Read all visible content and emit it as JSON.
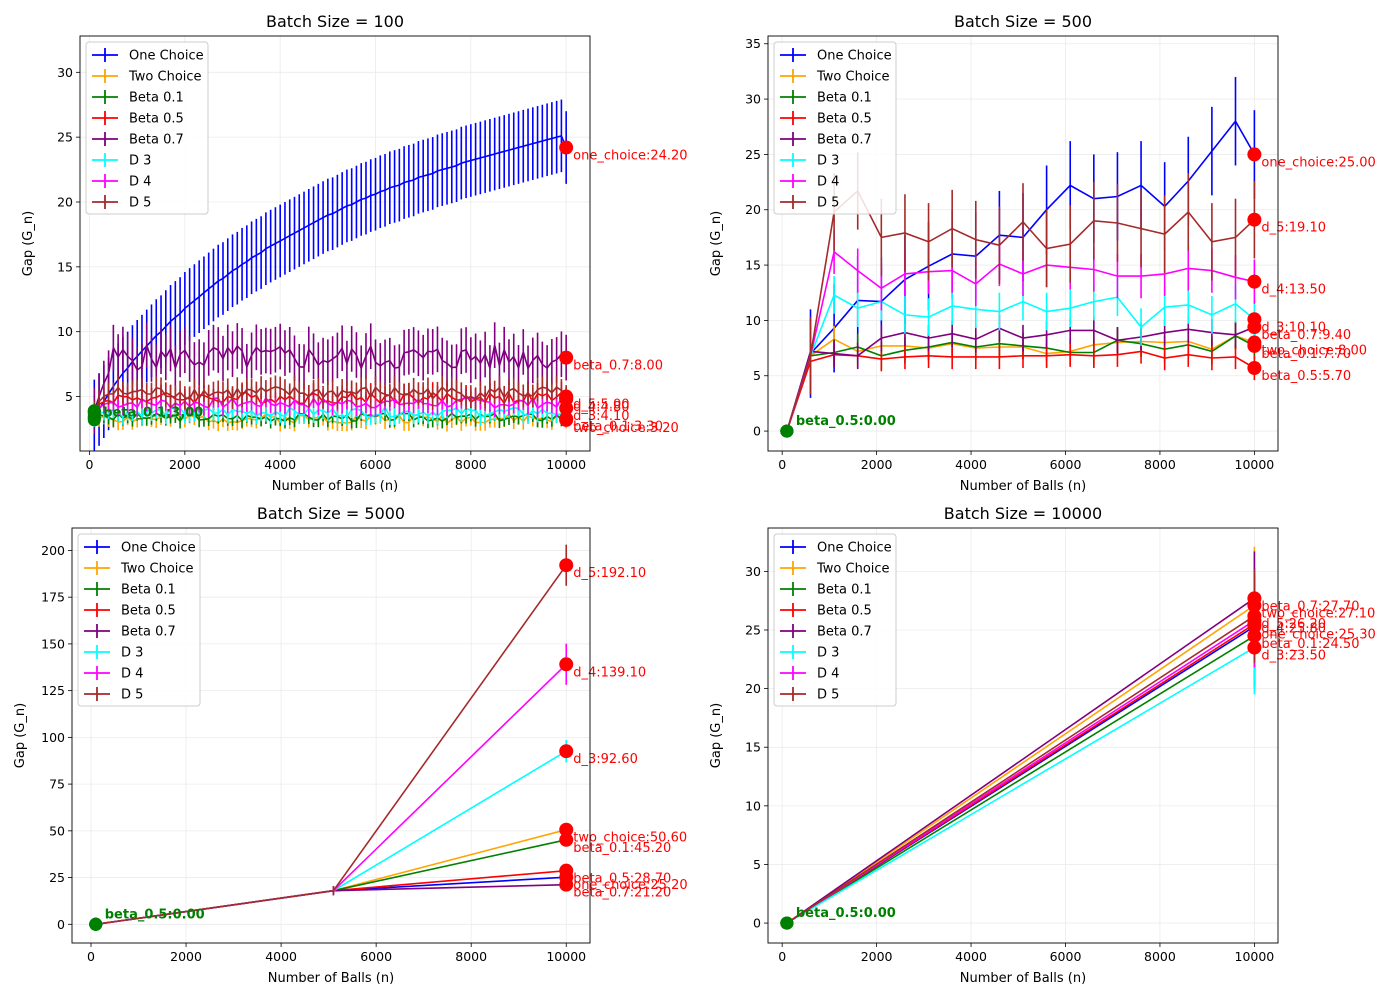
{
  "legend_location": "upper-left",
  "annotation_color": "#ff0000",
  "first_point_color": "#008000",
  "chart_data": [
    {
      "type": "line",
      "title": "Batch Size = 100",
      "xlabel": "Number of Balls (n)",
      "ylabel": "Gap (G_n)",
      "xlim": [
        -200,
        10500
      ],
      "ylim": [
        0.8,
        32.8
      ],
      "xticks": [
        0,
        2000,
        4000,
        6000,
        8000,
        10000
      ],
      "yticks": [
        5,
        10,
        15,
        20,
        25,
        30
      ],
      "grid": true,
      "legend_position": "upper-left",
      "annotations_end": [
        {
          "label": "one_choice:24.20",
          "y": 24.2
        },
        {
          "label": "beta_0.7:8.00",
          "y": 8.0
        },
        {
          "label": "d_5:5.00",
          "y": 5.0
        },
        {
          "label": "d_4:4.80",
          "y": 4.8
        },
        {
          "label": "d_3:4.10",
          "y": 4.1
        },
        {
          "label": "beta_0.1:3.30",
          "y": 3.3
        },
        {
          "label": "two_choice:3.20",
          "y": 3.2
        }
      ],
      "annotations_start": [
        {
          "label": "beta_0.1:3.00",
          "y": 3.0
        }
      ],
      "series": [
        {
          "name": "One Choice",
          "color": "#0000ff",
          "start": 100,
          "step": 100,
          "y": [
            3.5,
            4.0,
            4.6,
            5.2,
            5.8,
            6.3,
            6.8,
            7.2,
            7.7,
            8.1,
            8.5,
            8.9,
            9.3,
            9.7,
            10.0,
            10.4,
            10.8,
            11.1,
            11.4,
            11.8,
            12.1,
            12.4,
            12.7,
            13.0,
            13.3,
            13.6,
            13.9,
            14.1,
            14.4,
            14.7,
            14.9,
            15.2,
            15.4,
            15.7,
            15.9,
            16.1,
            16.4,
            16.6,
            16.8,
            17.0,
            17.2,
            17.4,
            17.6,
            17.8,
            18.0,
            18.2,
            18.4,
            18.6,
            18.8,
            19.0,
            19.1,
            19.3,
            19.5,
            19.7,
            19.8,
            20.0,
            20.2,
            20.3,
            20.5,
            20.6,
            20.8,
            20.9,
            21.1,
            21.2,
            21.3,
            21.5,
            21.6,
            21.7,
            21.9,
            22.0,
            22.1,
            22.2,
            22.4,
            22.5,
            22.6,
            22.7,
            22.8,
            23.0,
            23.1,
            23.2,
            23.3,
            23.4,
            23.5,
            23.6,
            23.7,
            23.8,
            23.9,
            24.0,
            24.1,
            24.2,
            24.3,
            24.4,
            24.5,
            24.6,
            24.7,
            24.8,
            24.9,
            25.0,
            25.1,
            24.2
          ],
          "err": 3.5,
          "marker_end": 24.2
        },
        {
          "name": "Two Choice",
          "color": "#ffa500",
          "start": 100,
          "step": 100,
          "y": [
            3.4,
            3.3,
            3.5,
            3.3
          ],
          "err": 0.8,
          "marker_end": 3.2,
          "series_level": 3.3
        },
        {
          "name": "Beta 0.1",
          "color": "#008000",
          "start": 100,
          "step": 100,
          "y": [
            3.2,
            3.6,
            3.5,
            3.4
          ],
          "err": 0.7,
          "marker_end": 3.3,
          "series_level": 3.4
        },
        {
          "name": "Beta 0.5",
          "color": "#ff0000",
          "start": 100,
          "step": 100,
          "y": [
            3.9,
            4.4,
            4.6,
            4.7
          ],
          "err": 1.0,
          "marker_end": 4.9,
          "series_level": 4.9
        },
        {
          "name": "Beta 0.7",
          "color": "#800080",
          "start": 100,
          "step": 100,
          "y": [
            3.9,
            5.0,
            6.0,
            6.8
          ],
          "err": 2.2,
          "marker_end": 8.0,
          "series_level": 8.0
        },
        {
          "name": "D 3",
          "color": "#00ffff",
          "start": 100,
          "step": 100,
          "y": [
            3.3,
            3.7,
            3.8,
            3.9
          ],
          "err": 0.8,
          "marker_end": 4.1,
          "series_level": 3.8
        },
        {
          "name": "D 4",
          "color": "#ff00ff",
          "start": 100,
          "step": 100,
          "y": [
            3.7,
            4.1,
            4.4,
            4.5
          ],
          "err": 0.9,
          "marker_end": 4.8,
          "series_level": 4.5
        },
        {
          "name": "D 5",
          "color": "#a52a2a",
          "start": 100,
          "step": 100,
          "y": [
            3.8,
            4.6,
            5.0,
            5.2
          ],
          "err": 1.1,
          "marker_end": 5.0,
          "series_level": 5.3
        }
      ]
    },
    {
      "type": "line",
      "title": "Batch Size = 500",
      "xlabel": "Number of Balls (n)",
      "ylabel": "Gap (G_n)",
      "xlim": [
        -300,
        10500
      ],
      "ylim": [
        -1.8,
        35.7
      ],
      "xticks": [
        0,
        2000,
        4000,
        6000,
        8000,
        10000
      ],
      "yticks": [
        0,
        5,
        10,
        15,
        20,
        25,
        30,
        35
      ],
      "grid": true,
      "legend_position": "upper-left",
      "annotations_end": [
        {
          "label": "one_choice:25.00",
          "y": 25.0
        },
        {
          "label": "d_5:19.10",
          "y": 19.1
        },
        {
          "label": "d_4:13.50",
          "y": 13.5
        },
        {
          "label": "d_3:10.10",
          "y": 10.1
        },
        {
          "label": "beta_0.7:9.40",
          "y": 9.4
        },
        {
          "label": "two_choice:8.00",
          "y": 8.0
        },
        {
          "label": "beta_0.1:7.70",
          "y": 7.7
        },
        {
          "label": "beta_0.5:5.70",
          "y": 5.7
        }
      ],
      "annotations_start": [
        {
          "label": "beta_0.5:0.00",
          "y": 0.0
        }
      ],
      "x": [
        100,
        600,
        1100,
        1600,
        2100,
        2600,
        3100,
        3600,
        4100,
        4600,
        5100,
        5600,
        6100,
        6600,
        7100,
        7600,
        8100,
        8600,
        9100,
        9600,
        10000
      ],
      "series": [
        {
          "name": "One Choice",
          "color": "#0000ff",
          "y": [
            0,
            7.0,
            9.3,
            11.8,
            11.7,
            13.7,
            14.9,
            16.0,
            15.8,
            17.7,
            17.5,
            20.0,
            22.2,
            21.0,
            21.2,
            22.2,
            20.3,
            22.6,
            25.3,
            28.0,
            25.0
          ],
          "err": 4.0
        },
        {
          "name": "Two Choice",
          "color": "#ffa500",
          "y": [
            0,
            6.8,
            8.3,
            7.2,
            7.7,
            7.7,
            7.5,
            7.9,
            7.5,
            7.6,
            7.6,
            7.0,
            7.2,
            7.8,
            8.0,
            8.1,
            8.0,
            8.1,
            7.4,
            8.6,
            8.0
          ],
          "err": 1.2
        },
        {
          "name": "Beta 0.1",
          "color": "#008000",
          "y": [
            0,
            6.8,
            7.1,
            7.6,
            6.8,
            7.3,
            7.6,
            8.0,
            7.6,
            7.9,
            7.7,
            7.5,
            7.1,
            7.1,
            8.2,
            7.9,
            7.4,
            7.8,
            7.2,
            8.6,
            7.7
          ],
          "err": 1.2
        },
        {
          "name": "Beta 0.5",
          "color": "#ff0000",
          "y": [
            0,
            6.3,
            6.9,
            6.8,
            6.5,
            6.7,
            6.8,
            6.7,
            6.7,
            6.7,
            6.8,
            6.8,
            6.9,
            6.8,
            6.9,
            7.2,
            6.6,
            6.9,
            6.6,
            6.7,
            5.7
          ],
          "err": 1.1
        },
        {
          "name": "Beta 0.7",
          "color": "#800080",
          "y": [
            0,
            7.2,
            7.0,
            6.8,
            8.4,
            8.9,
            8.4,
            8.8,
            8.3,
            9.3,
            8.4,
            8.7,
            9.1,
            9.1,
            8.2,
            8.5,
            8.9,
            9.2,
            8.9,
            8.7,
            9.4
          ],
          "err": 1.2
        },
        {
          "name": "D 3",
          "color": "#00ffff",
          "y": [
            0,
            6.8,
            12.3,
            11.1,
            11.7,
            10.5,
            10.3,
            11.3,
            11.0,
            10.8,
            11.7,
            10.8,
            11.1,
            11.7,
            12.1,
            9.4,
            11.2,
            11.4,
            10.5,
            11.5,
            10.1
          ],
          "err": 1.7
        },
        {
          "name": "D 4",
          "color": "#ff00ff",
          "y": [
            0,
            6.8,
            16.2,
            14.5,
            12.9,
            14.2,
            14.4,
            14.5,
            13.3,
            15.1,
            14.2,
            15.0,
            14.8,
            14.6,
            14.0,
            14.0,
            14.2,
            14.7,
            14.5,
            13.9,
            13.5
          ],
          "err": 2.0
        },
        {
          "name": "D 5",
          "color": "#a52a2a",
          "y": [
            0,
            6.8,
            19.8,
            21.7,
            17.5,
            17.9,
            17.1,
            18.3,
            17.3,
            16.8,
            18.9,
            16.5,
            16.9,
            19.0,
            18.8,
            18.3,
            17.8,
            19.8,
            17.1,
            17.5,
            19.1
          ],
          "err": 3.5
        }
      ]
    },
    {
      "type": "line",
      "title": "Batch Size = 5000",
      "xlabel": "Number of Balls (n)",
      "ylabel": "Gap (G_n)",
      "xlim": [
        -400,
        10500
      ],
      "ylim": [
        -10,
        212
      ],
      "xticks": [
        0,
        2000,
        4000,
        6000,
        8000,
        10000
      ],
      "yticks": [
        0,
        25,
        50,
        75,
        100,
        125,
        150,
        175,
        200
      ],
      "grid": true,
      "legend_position": "upper-left",
      "annotations_end": [
        {
          "label": "d_5:192.10",
          "y": 192.1
        },
        {
          "label": "d_4:139.10",
          "y": 139.1
        },
        {
          "label": "d_3:92.60",
          "y": 92.6
        },
        {
          "label": "two_choice:50.60",
          "y": 50.6
        },
        {
          "label": "beta_0.1:45.20",
          "y": 45.2
        },
        {
          "label": "beta_0.5:28.70",
          "y": 28.7
        },
        {
          "label": "one_choice:25.20",
          "y": 25.2
        },
        {
          "label": "beta_0.7:21.20",
          "y": 21.2
        }
      ],
      "annotations_start": [
        {
          "label": "beta_0.5:0.00",
          "y": 0.0
        }
      ],
      "x": [
        100,
        5100,
        10000
      ],
      "series": [
        {
          "name": "One Choice",
          "color": "#0000ff",
          "y": [
            0,
            18.0,
            25.2
          ],
          "err": [
            0,
            1.8,
            2.0
          ]
        },
        {
          "name": "Two Choice",
          "color": "#ffa500",
          "y": [
            0,
            18.0,
            50.6
          ],
          "err": [
            0,
            1.8,
            2.5
          ]
        },
        {
          "name": "Beta 0.1",
          "color": "#008000",
          "y": [
            0,
            18.0,
            45.2
          ],
          "err": [
            0,
            1.8,
            2.0
          ]
        },
        {
          "name": "Beta 0.5",
          "color": "#ff0000",
          "y": [
            0,
            18.0,
            28.7
          ],
          "err": [
            0,
            1.8,
            1.5
          ]
        },
        {
          "name": "Beta 0.7",
          "color": "#800080",
          "y": [
            0,
            18.0,
            21.2
          ],
          "err": [
            0,
            1.8,
            1.5
          ]
        },
        {
          "name": "D 3",
          "color": "#00ffff",
          "y": [
            0,
            18.0,
            92.6
          ],
          "err": [
            0,
            2.5,
            6.0
          ]
        },
        {
          "name": "D 4",
          "color": "#ff00ff",
          "y": [
            0,
            18.0,
            139.1
          ],
          "err": [
            0,
            2.5,
            11.0
          ]
        },
        {
          "name": "D 5",
          "color": "#a52a2a",
          "y": [
            0,
            18.0,
            192.1
          ],
          "err": [
            0,
            2.5,
            11.0
          ]
        }
      ]
    },
    {
      "type": "line",
      "title": "Batch Size = 10000",
      "xlabel": "Number of Balls (n)",
      "ylabel": "Gap (G_n)",
      "xlim": [
        -300,
        10500
      ],
      "ylim": [
        -1.7,
        33.7
      ],
      "xticks": [
        0,
        2000,
        4000,
        6000,
        8000,
        10000
      ],
      "yticks": [
        0,
        5,
        10,
        15,
        20,
        25,
        30
      ],
      "grid": true,
      "legend_position": "upper-left",
      "annotations_end": [
        {
          "label": "beta_0.7:27.70",
          "y": 27.7
        },
        {
          "label": "two_choice:27.10",
          "y": 27.1
        },
        {
          "label": "d_5:26.20",
          "y": 26.2
        },
        {
          "label": "d_4:25.80",
          "y": 25.8
        },
        {
          "label": "one_choice:25.30",
          "y": 25.3
        },
        {
          "label": "beta_0.1:24.50",
          "y": 24.5
        },
        {
          "label": "d_3:23.50",
          "y": 23.5
        }
      ],
      "annotations_start": [
        {
          "label": "beta_0.5:0.00",
          "y": 0.0
        }
      ],
      "x": [
        100,
        10000
      ],
      "series": [
        {
          "name": "One Choice",
          "color": "#0000ff",
          "y": [
            0,
            25.3
          ],
          "err": [
            0,
            5.0
          ]
        },
        {
          "name": "Two Choice",
          "color": "#ffa500",
          "y": [
            0,
            27.1
          ],
          "err": [
            0,
            5.0
          ]
        },
        {
          "name": "Beta 0.1",
          "color": "#008000",
          "y": [
            0,
            24.5
          ],
          "err": [
            0,
            4.5
          ]
        },
        {
          "name": "Beta 0.5",
          "color": "#ff0000",
          "y": [
            0,
            25.5
          ],
          "err": [
            0,
            4.0
          ]
        },
        {
          "name": "Beta 0.7",
          "color": "#800080",
          "y": [
            0,
            27.7
          ],
          "err": [
            0,
            4.0
          ]
        },
        {
          "name": "D 3",
          "color": "#00ffff",
          "y": [
            0,
            23.5
          ],
          "err": [
            0,
            4.0
          ]
        },
        {
          "name": "D 4",
          "color": "#ff00ff",
          "y": [
            0,
            25.8
          ],
          "err": [
            0,
            4.0
          ]
        },
        {
          "name": "D 5",
          "color": "#a52a2a",
          "y": [
            0,
            26.2
          ],
          "err": [
            0,
            4.0
          ]
        }
      ]
    }
  ]
}
